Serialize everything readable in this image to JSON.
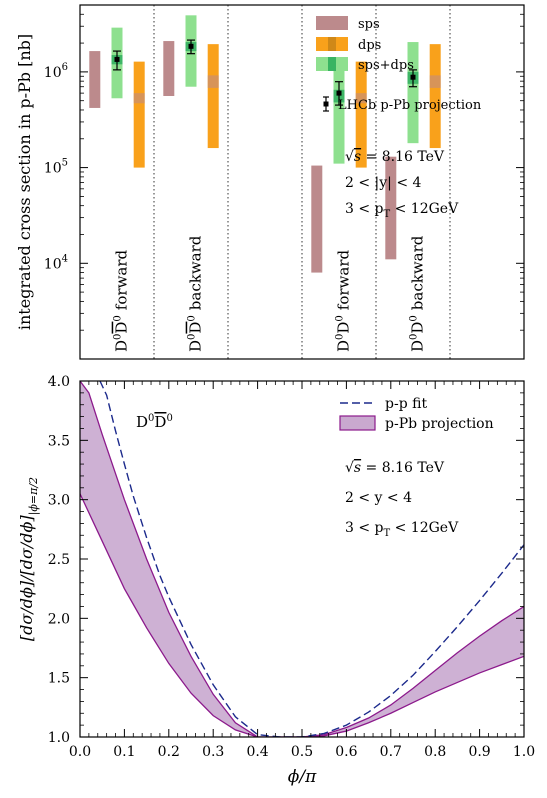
{
  "colors": {
    "sps": "#bc8a8c",
    "dps": "#f9a11b",
    "sps_dps": "#8ee08f",
    "sps_dps_center": "#2aab5b",
    "dps_center": "#c88418",
    "ppfit": "#1c2a8c",
    "pPb_band": "#c9a9cf",
    "pPb_edge": "#8c1a8c",
    "dotted": "#333333"
  },
  "chart_data": [
    {
      "type": "bar",
      "title": "",
      "ylabel": "integrated cross section in p-Pb [nb]",
      "yscale": "log",
      "ylim": [
        1000,
        5000000
      ],
      "y_ticks": [
        {
          "value": 10000,
          "label_base": "10",
          "label_exp": "4"
        },
        {
          "value": 100000,
          "label_base": "10",
          "label_exp": "5"
        },
        {
          "value": 1000000,
          "label_base": "10",
          "label_exp": "6"
        }
      ],
      "xlim": [
        0,
        0.6
      ],
      "dividers": [
        0.1,
        0.2,
        0.3,
        0.4,
        0.5
      ],
      "groups": [
        {
          "main": "D",
          "sup1": "0",
          "mid": "D",
          "sup2": "0",
          "bar": true,
          "dir": "forward",
          "x_center": 0.055
        },
        {
          "main": "D",
          "sup1": "0",
          "mid": "D",
          "sup2": "0",
          "bar": true,
          "dir": "backward",
          "x_center": 0.155
        },
        {
          "main": "D",
          "sup1": "0",
          "mid": "D",
          "sup2": "0",
          "bar": false,
          "dir": "forward",
          "x_center": 0.355
        },
        {
          "main": "D",
          "sup1": "0",
          "mid": "D",
          "sup2": "0",
          "bar": false,
          "dir": "backward",
          "x_center": 0.455
        }
      ],
      "bars": [
        {
          "series": "sps",
          "x": 0.02,
          "low": 420000,
          "high": 1650000
        },
        {
          "series": "sps+dps",
          "x": 0.05,
          "low": 530000,
          "high": 2900000,
          "central_low": 1200000,
          "central_high": 1500000
        },
        {
          "series": "dps",
          "x": 0.08,
          "low": 100000,
          "high": 1280000,
          "central_low": 470000,
          "central_high": 600000
        },
        {
          "series": "sps",
          "x": 0.12,
          "low": 560000,
          "high": 2100000
        },
        {
          "series": "sps+dps",
          "x": 0.15,
          "low": 700000,
          "high": 3900000,
          "central_low": 1650000,
          "central_high": 2050000
        },
        {
          "series": "dps",
          "x": 0.18,
          "low": 160000,
          "high": 1950000,
          "central_low": 680000,
          "central_high": 920000
        },
        {
          "series": "sps",
          "x": 0.32,
          "low": 8000,
          "high": 105000
        },
        {
          "series": "sps+dps",
          "x": 0.35,
          "low": 110000,
          "high": 1380000,
          "central_low": 480000,
          "central_high": 650000
        },
        {
          "series": "dps",
          "x": 0.38,
          "low": 100000,
          "high": 1280000,
          "central_low": 470000,
          "central_high": 600000
        },
        {
          "series": "sps",
          "x": 0.42,
          "low": 11000,
          "high": 130000
        },
        {
          "series": "sps+dps",
          "x": 0.45,
          "low": 180000,
          "high": 2050000,
          "central_low": 750000,
          "central_high": 1000000
        },
        {
          "series": "dps",
          "x": 0.48,
          "low": 160000,
          "high": 1950000,
          "central_low": 680000,
          "central_high": 920000
        }
      ],
      "lhcb_points": [
        {
          "x": 0.05,
          "y": 1350000,
          "err_low": 1050000,
          "err_high": 1650000
        },
        {
          "x": 0.15,
          "y": 1850000,
          "err_low": 1550000,
          "err_high": 2150000
        },
        {
          "x": 0.35,
          "y": 600000,
          "err_low": 450000,
          "err_high": 790000
        },
        {
          "x": 0.45,
          "y": 880000,
          "err_low": 700000,
          "err_high": 1050000
        }
      ],
      "legend": [
        "sps",
        "dps",
        "sps+dps",
        "LHCb p-Pb projection"
      ],
      "annotations": [
        {
          "pre": "√",
          "over": "s",
          "post": " = 8.16 TeV"
        },
        {
          "text": "2 < |y| < 4"
        },
        {
          "pre": "3 < p",
          "sub": "T",
          "post": " < 12GeV"
        }
      ]
    },
    {
      "type": "line",
      "title": "",
      "xlabel": "ϕ/π",
      "ylabel": "[dσ/dϕ]/[dσ/dϕ]",
      "ylabel_sub": "|ϕ=π/2",
      "xlim": [
        0,
        1
      ],
      "ylim": [
        1,
        4
      ],
      "x_ticks": [
        "0.0",
        "0.1",
        "0.2",
        "0.3",
        "0.4",
        "0.5",
        "0.6",
        "0.7",
        "0.8",
        "0.9",
        "1.0"
      ],
      "y_ticks": [
        "1.0",
        "1.5",
        "2.0",
        "2.5",
        "3.0",
        "3.5",
        "4.0"
      ],
      "label": {
        "main": "D",
        "sup1": "0",
        "mid": "D",
        "sup2": "0",
        "bar": true
      },
      "legend": [
        "p-p fit",
        "p-Pb projection"
      ],
      "annotations": [
        {
          "pre": "√",
          "over": "s",
          "post": " = 8.16 TeV"
        },
        {
          "text": "2 < y < 4"
        },
        {
          "pre": "3 < p",
          "sub": "T",
          "post": " < 12GeV"
        }
      ],
      "pp_fit": {
        "x": [
          0.045,
          0.06,
          0.08,
          0.1,
          0.12,
          0.15,
          0.18,
          0.2,
          0.25,
          0.3,
          0.35,
          0.4,
          0.45,
          0.5,
          0.55,
          0.6,
          0.65,
          0.7,
          0.75,
          0.8,
          0.85,
          0.9,
          0.95,
          1.0
        ],
        "y": [
          4.0,
          3.88,
          3.58,
          3.3,
          3.03,
          2.68,
          2.36,
          2.18,
          1.78,
          1.44,
          1.17,
          1.02,
          1.0,
          1.0,
          1.03,
          1.1,
          1.21,
          1.35,
          1.52,
          1.72,
          1.93,
          2.15,
          2.38,
          2.62
        ]
      },
      "ppb_upper": {
        "x": [
          0.0,
          0.02,
          0.05,
          0.1,
          0.15,
          0.2,
          0.25,
          0.3,
          0.35,
          0.4,
          0.45,
          0.5,
          0.55,
          0.6,
          0.65,
          0.7,
          0.75,
          0.8,
          0.85,
          0.9,
          0.95,
          1.0
        ],
        "y": [
          4.0,
          3.9,
          3.55,
          3.0,
          2.5,
          2.05,
          1.68,
          1.36,
          1.12,
          1.0,
          1.0,
          1.0,
          1.02,
          1.08,
          1.16,
          1.27,
          1.41,
          1.56,
          1.71,
          1.85,
          1.98,
          2.1
        ]
      },
      "ppb_lower": {
        "x": [
          0.0,
          0.05,
          0.1,
          0.15,
          0.2,
          0.25,
          0.3,
          0.35,
          0.4,
          0.45,
          0.5,
          0.55,
          0.6,
          0.65,
          0.7,
          0.75,
          0.8,
          0.85,
          0.9,
          0.95,
          1.0
        ],
        "y": [
          3.05,
          2.65,
          2.25,
          1.92,
          1.62,
          1.37,
          1.18,
          1.06,
          1.0,
          1.0,
          1.0,
          1.01,
          1.05,
          1.12,
          1.2,
          1.29,
          1.38,
          1.46,
          1.54,
          1.61,
          1.68
        ]
      }
    }
  ]
}
